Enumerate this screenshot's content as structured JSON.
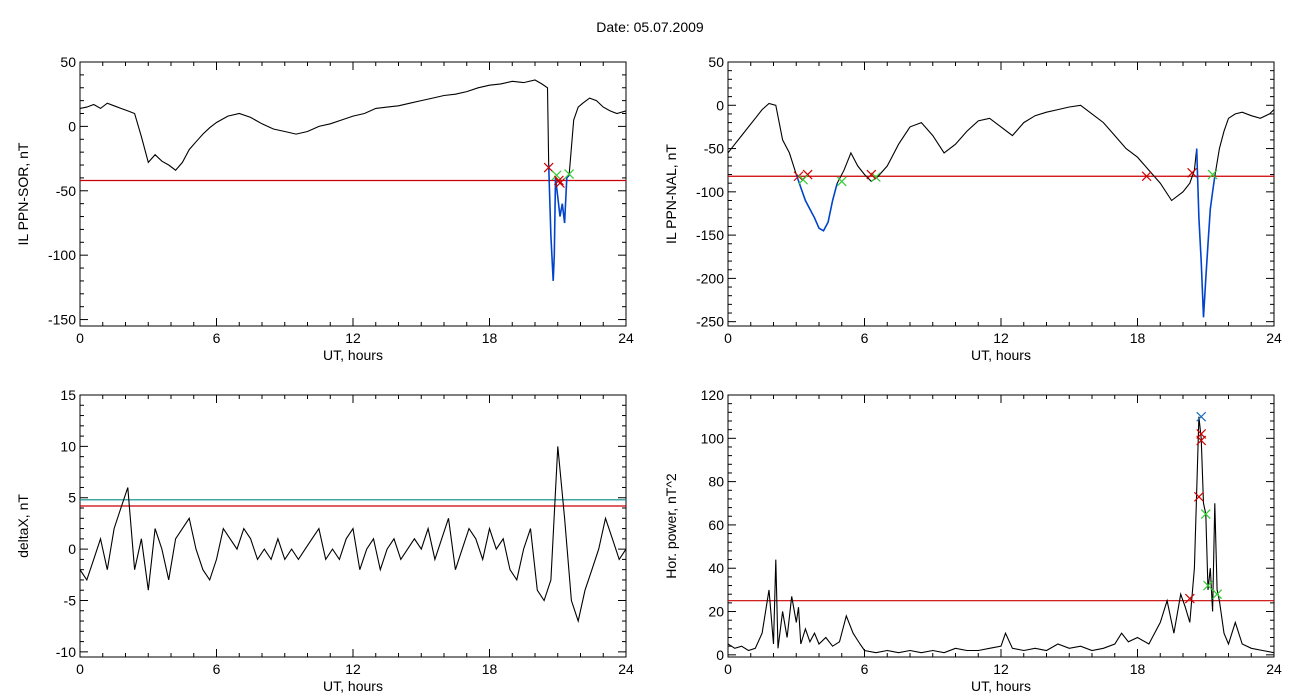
{
  "page_title": "Date:  05.07.2009",
  "colors": {
    "trace": "#000000",
    "highlight": "#0044cc",
    "threshold_red": "#cc0000",
    "threshold_cyan": "#008b8b",
    "marker_red": "#cc0000",
    "marker_green": "#33cc33",
    "marker_blue": "#1a6bbf"
  },
  "chart_data": [
    {
      "type": "line",
      "title": "",
      "xlabel": "UT, hours",
      "ylabel": "IL PPN-SOR, nT",
      "xlim": [
        0,
        24
      ],
      "ylim": [
        -155,
        50
      ],
      "xticks": [
        0,
        6,
        12,
        18,
        24
      ],
      "yticks": [
        50,
        0,
        -50,
        -100,
        -150
      ],
      "thresholds": [
        {
          "y": -42,
          "color": "red"
        }
      ],
      "series": [
        {
          "style": "black",
          "x": [
            0,
            0.3,
            0.6,
            0.9,
            1.2,
            1.5,
            1.8,
            2.1,
            2.4,
            2.7,
            3.0,
            3.3,
            3.6,
            3.9,
            4.2,
            4.5,
            4.8,
            5.1,
            5.4,
            5.7,
            6.0,
            6.5,
            7.0,
            7.5,
            8.0,
            8.5,
            9.0,
            9.5,
            10.0,
            10.5,
            11.0,
            11.5,
            12.0,
            12.5,
            13.0,
            13.5,
            14.0,
            14.5,
            15.0,
            15.5,
            16.0,
            16.5,
            17.0,
            17.5,
            18.0,
            18.5,
            19.0,
            19.5,
            20.0,
            20.3,
            20.55,
            20.6
          ],
          "y": [
            14,
            15,
            17,
            14,
            18,
            16,
            14,
            12,
            10,
            -8,
            -28,
            -22,
            -27,
            -30,
            -34,
            -28,
            -18,
            -12,
            -6,
            -1,
            3,
            8,
            10,
            7,
            2,
            -2,
            -4,
            -6,
            -4,
            0,
            2,
            5,
            8,
            10,
            14,
            15,
            16,
            18,
            20,
            22,
            24,
            25,
            27,
            30,
            32,
            33,
            35,
            34,
            36,
            33,
            30,
            -30
          ]
        },
        {
          "style": "blue",
          "x": [
            20.6,
            20.7,
            20.8,
            20.85,
            20.9,
            21.0,
            21.1,
            21.2,
            21.3,
            21.4,
            21.5
          ],
          "y": [
            -30,
            -85,
            -120,
            -100,
            -40,
            -55,
            -70,
            -60,
            -75,
            -40,
            -38
          ]
        },
        {
          "style": "black",
          "x": [
            21.5,
            21.7,
            21.9,
            22.1,
            22.4,
            22.7,
            23.0,
            23.3,
            23.6,
            24.0
          ],
          "y": [
            -38,
            5,
            15,
            18,
            22,
            20,
            15,
            12,
            10,
            12
          ]
        }
      ],
      "markers": [
        {
          "x": 20.6,
          "y": -32,
          "color": "red"
        },
        {
          "x": 20.95,
          "y": -38,
          "color": "green"
        },
        {
          "x": 21.05,
          "y": -42,
          "color": "red"
        },
        {
          "x": 21.1,
          "y": -44,
          "color": "red"
        },
        {
          "x": 21.5,
          "y": -37,
          "color": "green"
        }
      ]
    },
    {
      "type": "line",
      "title": "",
      "xlabel": "UT, hours",
      "ylabel": "IL PPN-NAL, nT",
      "xlim": [
        0,
        24
      ],
      "ylim": [
        -255,
        50
      ],
      "xticks": [
        0,
        6,
        12,
        18,
        24
      ],
      "yticks": [
        50,
        0,
        -50,
        -100,
        -150,
        -200,
        -250
      ],
      "thresholds": [
        {
          "y": -82,
          "color": "red"
        }
      ],
      "series": [
        {
          "style": "black",
          "x": [
            0,
            0.3,
            0.6,
            0.9,
            1.2,
            1.5,
            1.8,
            2.1,
            2.4,
            2.7,
            3.0
          ],
          "y": [
            -55,
            -45,
            -35,
            -25,
            -15,
            -5,
            2,
            0,
            -40,
            -55,
            -80
          ]
        },
        {
          "style": "blue",
          "x": [
            3.0,
            3.2,
            3.4,
            3.6,
            3.8,
            4.0,
            4.2,
            4.4,
            4.6,
            4.8
          ],
          "y": [
            -80,
            -95,
            -110,
            -120,
            -130,
            -142,
            -145,
            -135,
            -110,
            -90
          ]
        },
        {
          "style": "black",
          "x": [
            4.8,
            5.1,
            5.4,
            5.7,
            6.0,
            6.3,
            6.6,
            7.0,
            7.5,
            8.0,
            8.5,
            9.0,
            9.5,
            10.0,
            10.5,
            11.0,
            11.5,
            12.0,
            12.5,
            13.0,
            13.5,
            14.0,
            14.5,
            15.0,
            15.5,
            16.0,
            16.5,
            17.0,
            17.5,
            18.0,
            18.5,
            19.0,
            19.5,
            20.0,
            20.3,
            20.5,
            20.6
          ],
          "y": [
            -90,
            -75,
            -55,
            -70,
            -80,
            -88,
            -82,
            -70,
            -45,
            -25,
            -20,
            -35,
            -55,
            -45,
            -30,
            -18,
            -15,
            -25,
            -35,
            -20,
            -12,
            -8,
            -5,
            -2,
            0,
            -10,
            -20,
            -35,
            -50,
            -60,
            -75,
            -90,
            -110,
            -100,
            -90,
            -75,
            -50
          ]
        },
        {
          "style": "blue",
          "x": [
            20.6,
            20.7,
            20.8,
            20.9,
            21.0,
            21.1,
            21.2,
            21.3,
            21.4
          ],
          "y": [
            -50,
            -130,
            -180,
            -245,
            -200,
            -160,
            -120,
            -100,
            -82
          ]
        },
        {
          "style": "black",
          "x": [
            21.4,
            21.6,
            21.8,
            22.0,
            22.3,
            22.6,
            23.0,
            23.4,
            23.8,
            24.0
          ],
          "y": [
            -82,
            -50,
            -30,
            -15,
            -10,
            -8,
            -12,
            -15,
            -10,
            -5
          ]
        }
      ],
      "markers": [
        {
          "x": 3.1,
          "y": -82,
          "color": "red"
        },
        {
          "x": 3.5,
          "y": -80,
          "color": "red"
        },
        {
          "x": 3.3,
          "y": -86,
          "color": "green"
        },
        {
          "x": 5.0,
          "y": -88,
          "color": "green"
        },
        {
          "x": 6.5,
          "y": -83,
          "color": "green"
        },
        {
          "x": 6.3,
          "y": -80,
          "color": "red"
        },
        {
          "x": 18.4,
          "y": -82,
          "color": "red"
        },
        {
          "x": 20.4,
          "y": -78,
          "color": "red"
        },
        {
          "x": 21.3,
          "y": -80,
          "color": "green"
        }
      ]
    },
    {
      "type": "line",
      "title": "",
      "xlabel": "UT, hours",
      "ylabel": "deltaX, nT",
      "xlim": [
        0,
        24
      ],
      "ylim": [
        -10.5,
        15
      ],
      "xticks": [
        0,
        6,
        12,
        18,
        24
      ],
      "yticks": [
        15,
        10,
        5,
        0,
        -5,
        -10
      ],
      "thresholds": [
        {
          "y": 4.8,
          "color": "cyan"
        },
        {
          "y": 4.2,
          "color": "red"
        }
      ],
      "series": [
        {
          "style": "black",
          "x": [
            0,
            0.3,
            0.6,
            0.9,
            1.2,
            1.5,
            1.8,
            2.1,
            2.4,
            2.7,
            3.0,
            3.3,
            3.6,
            3.9,
            4.2,
            4.5,
            4.8,
            5.1,
            5.4,
            5.7,
            6.0,
            6.3,
            6.6,
            6.9,
            7.2,
            7.5,
            7.8,
            8.1,
            8.4,
            8.7,
            9.0,
            9.3,
            9.6,
            9.9,
            10.2,
            10.5,
            10.8,
            11.1,
            11.4,
            11.7,
            12.0,
            12.3,
            12.6,
            12.9,
            13.2,
            13.5,
            13.8,
            14.1,
            14.4,
            14.7,
            15.0,
            15.3,
            15.6,
            15.9,
            16.2,
            16.5,
            16.8,
            17.1,
            17.4,
            17.7,
            18.0,
            18.3,
            18.6,
            18.9,
            19.2,
            19.5,
            19.8,
            20.1,
            20.4,
            20.7,
            21.0,
            21.3,
            21.6,
            21.9,
            22.2,
            22.5,
            22.8,
            23.1,
            23.4,
            23.7,
            24.0
          ],
          "y": [
            -2,
            -3,
            -1,
            1,
            -2,
            2,
            4,
            6,
            -2,
            1,
            -4,
            2,
            0,
            -3,
            1,
            2,
            3,
            0,
            -2,
            -3,
            -1,
            2,
            1,
            0,
            2,
            1,
            -1,
            0,
            -1,
            1,
            -1,
            0,
            -1,
            0,
            1,
            2,
            -1,
            0,
            -1,
            1,
            2,
            -2,
            0,
            1,
            -2,
            0,
            1,
            -1,
            0,
            1,
            0,
            2,
            -1,
            1,
            3,
            -2,
            0,
            2,
            1,
            -1,
            2,
            0,
            1,
            -2,
            -3,
            0,
            2,
            -4,
            -5,
            -3,
            10,
            3,
            -5,
            -7,
            -4,
            -2,
            0,
            3,
            1,
            -1,
            0
          ]
        }
      ],
      "markers": []
    },
    {
      "type": "line",
      "title": "",
      "xlabel": "UT, hours",
      "ylabel": "Hor. power, nT^2",
      "xlim": [
        0,
        24
      ],
      "ylim": [
        -1,
        120
      ],
      "xticks": [
        0,
        6,
        12,
        18,
        24
      ],
      "yticks": [
        120,
        100,
        80,
        60,
        40,
        20,
        0
      ],
      "thresholds": [
        {
          "y": 25,
          "color": "red"
        }
      ],
      "series": [
        {
          "style": "black",
          "x": [
            0,
            0.3,
            0.6,
            0.9,
            1.2,
            1.5,
            1.8,
            2.0,
            2.1,
            2.2,
            2.4,
            2.6,
            2.8,
            3.0,
            3.1,
            3.2,
            3.4,
            3.6,
            3.8,
            4.0,
            4.3,
            4.6,
            4.9,
            5.2,
            5.5,
            5.8,
            6.0,
            6.5,
            7.0,
            7.5,
            8.0,
            8.5,
            9.0,
            9.5,
            10.0,
            10.5,
            11.0,
            11.5,
            12.0,
            12.2,
            12.5,
            13.0,
            13.5,
            14.0,
            14.5,
            15.0,
            15.5,
            16.0,
            16.5,
            17.0,
            17.3,
            17.6,
            18.0,
            18.5,
            19.0,
            19.3,
            19.6,
            19.9,
            20.1,
            20.3,
            20.5,
            20.7,
            20.8,
            20.9,
            21.0,
            21.1,
            21.2,
            21.3,
            21.4,
            21.5,
            21.6,
            21.8,
            22.0,
            22.3,
            22.6,
            23.0,
            23.5,
            24.0
          ],
          "y": [
            5,
            3,
            4,
            2,
            3,
            10,
            30,
            5,
            44,
            3,
            20,
            8,
            27,
            15,
            22,
            5,
            12,
            6,
            10,
            5,
            8,
            4,
            6,
            18,
            10,
            5,
            2,
            1,
            2,
            1,
            2,
            1,
            2,
            1,
            3,
            2,
            2,
            3,
            4,
            10,
            3,
            2,
            3,
            2,
            5,
            3,
            4,
            2,
            3,
            5,
            10,
            6,
            8,
            5,
            15,
            25,
            10,
            28,
            22,
            15,
            40,
            110,
            100,
            70,
            65,
            30,
            40,
            20,
            70,
            30,
            25,
            10,
            5,
            15,
            5,
            3,
            2,
            1
          ]
        }
      ],
      "markers": [
        {
          "x": 20.3,
          "y": 26,
          "color": "red"
        },
        {
          "x": 20.7,
          "y": 73,
          "color": "red"
        },
        {
          "x": 20.8,
          "y": 110,
          "color": "blue"
        },
        {
          "x": 20.8,
          "y": 102,
          "color": "red"
        },
        {
          "x": 20.8,
          "y": 99,
          "color": "red"
        },
        {
          "x": 21.0,
          "y": 65,
          "color": "green"
        },
        {
          "x": 21.1,
          "y": 32,
          "color": "green"
        },
        {
          "x": 21.5,
          "y": 28,
          "color": "green"
        }
      ]
    }
  ]
}
